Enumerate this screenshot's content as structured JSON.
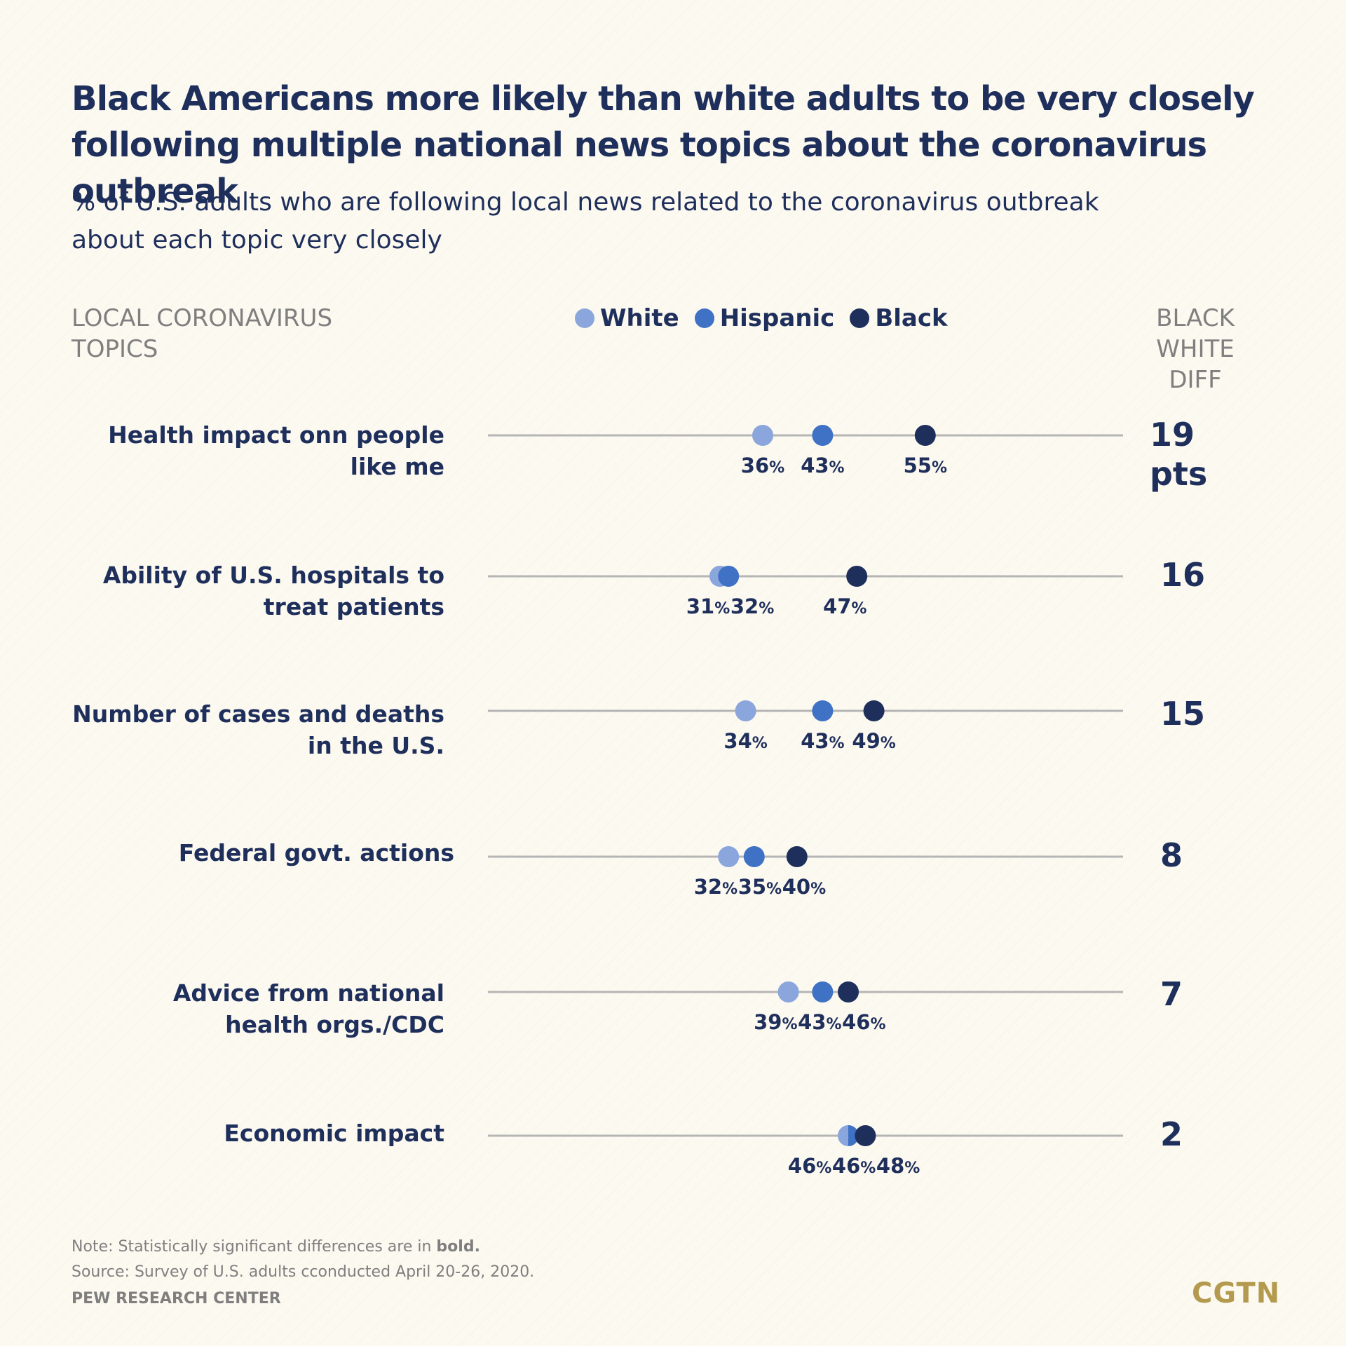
{
  "title": "Black Americans more likely than white adults to be very closely following multiple national news topics about the coronavirus outbreak",
  "subtitle": "% of U.S. adults who are following local news related to the coronavirus outbreak about each topic very closely",
  "left_header": "LOCAL CORONAVIRUS TOPICS",
  "right_header": "BLACK WHITE DIFF",
  "legend": [
    {
      "name": "White",
      "color": "#8ba6dc"
    },
    {
      "name": "Hispanic",
      "color": "#3f72c4"
    },
    {
      "name": "Black",
      "color": "#1f2f5c"
    }
  ],
  "rows": [
    {
      "label_line1": "Health impact onn people",
      "label_line2": "like me",
      "diff": "19 pts"
    },
    {
      "label_line1": "Ability of U.S. hospitals to",
      "label_line2": "treat patients",
      "diff": "16"
    },
    {
      "label_line1": "Number of cases and deaths",
      "label_line2": "in the U.S.",
      "diff": "15"
    },
    {
      "label_line1": "Federal govt. actions",
      "label_line2": "",
      "diff": "8"
    },
    {
      "label_line1": "Advice from national",
      "label_line2": "health orgs./CDC",
      "diff": "7"
    },
    {
      "label_line1": "Economic impact",
      "label_line2": "",
      "diff": "2"
    }
  ],
  "chart_data": {
    "type": "scatter",
    "subtype": "dot-plot",
    "categories": [
      "Health impact onn people like me",
      "Ability of U.S. hospitals to treat patients",
      "Number of cases and deaths in the U.S.",
      "Federal govt. actions",
      "Advice from national health orgs./CDC",
      "Economic impact"
    ],
    "series": [
      {
        "name": "White",
        "values": [
          36,
          31,
          34,
          32,
          39,
          46
        ]
      },
      {
        "name": "Hispanic",
        "values": [
          43,
          32,
          43,
          35,
          43,
          46
        ]
      },
      {
        "name": "Black",
        "values": [
          55,
          47,
          49,
          40,
          46,
          48
        ]
      }
    ],
    "black_white_diff": [
      "19 pts",
      "16",
      "15",
      "8",
      "7",
      "2"
    ],
    "value_suffix": "%",
    "xlim": [
      0,
      100
    ],
    "grid": false,
    "legend_position": "top-center"
  },
  "footer": {
    "note_prefix": "Note: Statistically significant differences are in ",
    "note_bold": "bold.",
    "source": "Source: Survey of U.S. adults cconducted April 20-26, 2020.",
    "org": "PEW RESEARCH CENTER"
  },
  "logo": "CGTN"
}
